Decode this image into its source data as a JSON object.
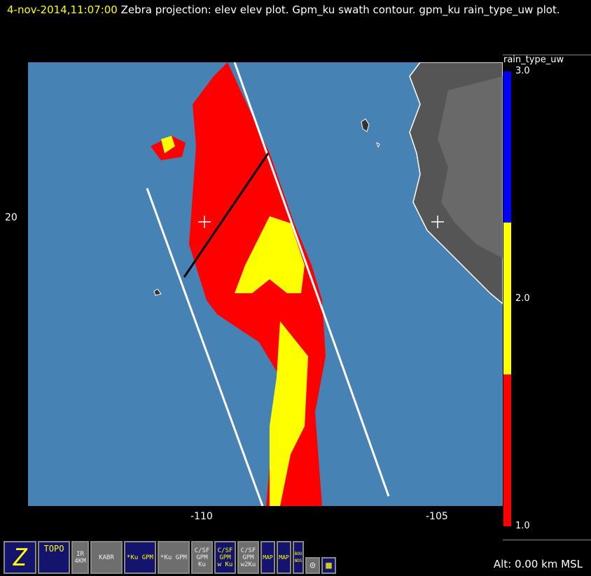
{
  "title": {
    "datetime": "4-nov-2014,11:07:00",
    "text": " Zebra projection: elev elev  plot.  Gpm_ku swath contour.  gpm_ku rain_type_uw  plot."
  },
  "map": {
    "ocean_color": "#4682b4",
    "land_color": "#505050",
    "y_tick_labels": [
      "20"
    ],
    "x_tick_labels": [
      "-110",
      "-105"
    ]
  },
  "colorbar": {
    "field": "rain_type_uw",
    "labels": [
      "3.0",
      "2.0",
      "1.0"
    ],
    "colors": [
      "#0000ff",
      "#ffff00",
      "#ff0000"
    ],
    "range": [
      1.0,
      3.0
    ]
  },
  "toolbar": {
    "icons": [
      {
        "name": "zebra-icon",
        "label": "Z"
      },
      {
        "name": "topo-icon",
        "label": "TOPO"
      },
      {
        "name": "ir-4km-icon",
        "label": "IR 4KM"
      },
      {
        "name": "kabr-radar-icon",
        "label": "KABR"
      },
      {
        "name": "ku-gpm-icon",
        "label": "*Ku GPM"
      },
      {
        "name": "ku-gpm-gray-icon",
        "label": "*Ku GPM"
      },
      {
        "name": "c-sf-gpm-ku-icon",
        "label": "C/SF GPM Ku"
      },
      {
        "name": "c-sf-gpm-w-ku-icon",
        "label": "C/SF GPM w Ku"
      },
      {
        "name": "c-sf-gpm-w2ku-icon",
        "label": "C/SF GPM w2Ku"
      },
      {
        "name": "map-icon",
        "label": "MAP"
      },
      {
        "name": "map-2-icon",
        "label": "MAP"
      },
      {
        "name": "bounds-icon",
        "label": "BOUNDS"
      }
    ]
  },
  "altitude": "Alt: 0.00 km MSL"
}
